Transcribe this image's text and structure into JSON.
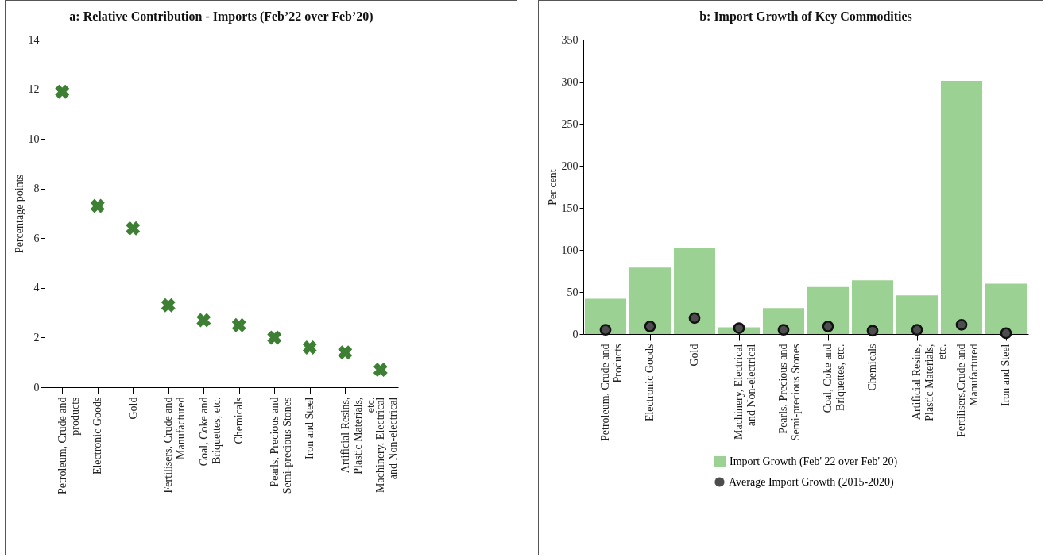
{
  "chart_data": [
    {
      "type": "scatter",
      "title": "a: Relative Contribution - Imports (Feb’22 over Feb’20)",
      "ylabel": "Percentage points",
      "categories": [
        "Petroleum, Crude and products",
        "Electronic Goods",
        "Gold",
        "Fertilisers, Crude and Manufactured",
        "Coal, Coke and Briquettes, etc.",
        "Chemicals",
        "Pearls, Precious and Semi-precious Stones",
        "Iron and Steel",
        "Artificial Resins, Plastic Materials, etc.",
        "Machinery, Electrical and Non-electrical"
      ],
      "series": [
        {
          "color": "#3d7f33",
          "values": [
            11.9,
            7.3,
            6.4,
            3.3,
            2.7,
            2.5,
            2.0,
            1.6,
            1.4,
            0.7
          ]
        }
      ],
      "ylim": [
        0,
        14
      ],
      "yticks": [
        0,
        2,
        4,
        6,
        8,
        10,
        12,
        14
      ],
      "marker": "cross"
    },
    {
      "type": "bar",
      "title": "b: Import Growth of Key Commodities",
      "ylabel": "Per cent",
      "categories": [
        "Petroleum, Crude and Products",
        "Electronic Goods",
        "Gold",
        "Machinery, Electrical and Non-electrical",
        "Pearls, Precious and Semi-precious Stones",
        "Coal, Coke and Briquettes, etc.",
        "Chemicals",
        "Artificial Resins, Plastic Materials, etc.",
        "Fertilisers,Crude and Manufactured",
        "Iron and Steel"
      ],
      "series": [
        {
          "name": "Import Growth (Feb' 22 over Feb' 20)",
          "color": "#9bd192",
          "values": [
            42,
            79,
            102,
            8,
            31,
            56,
            64,
            46,
            301,
            60
          ]
        },
        {
          "name": "Average Import Growth (2015-2020)",
          "type": "scatter",
          "marker": "circle",
          "color": "#4d4d4f",
          "values": [
            5,
            9,
            19,
            7,
            5,
            9,
            4,
            5,
            11,
            1
          ]
        }
      ],
      "ylim": [
        0,
        350
      ],
      "yticks": [
        0,
        50,
        100,
        150,
        200,
        250,
        300,
        350
      ],
      "legend": "bottom"
    }
  ]
}
